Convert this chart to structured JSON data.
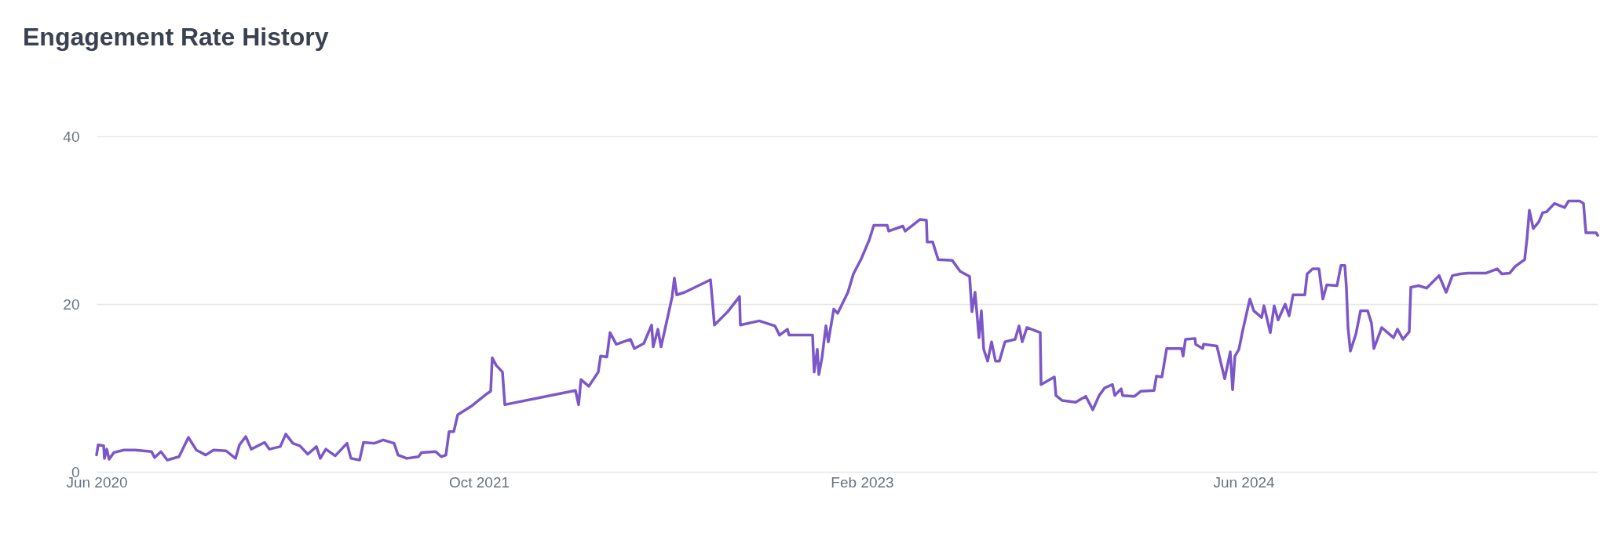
{
  "chart_data": {
    "type": "line",
    "title": "Engagement Rate History",
    "x": [
      "2020-06-01",
      "2020-06-03",
      "2020-06-10",
      "2020-06-11",
      "2020-06-14",
      "2020-06-17",
      "2020-06-23",
      "2020-07-06",
      "2020-07-20",
      "2020-08-10",
      "2020-08-14",
      "2020-08-22",
      "2020-08-30",
      "2020-09-14",
      "2020-09-26",
      "2020-10-06",
      "2020-10-18",
      "2020-10-28",
      "2020-11-13",
      "2020-11-25",
      "2020-11-30",
      "2020-12-08",
      "2020-12-15",
      "2021-01-01",
      "2021-01-07",
      "2021-01-21",
      "2021-01-28",
      "2021-02-06",
      "2021-02-15",
      "2021-02-25",
      "2021-03-08",
      "2021-03-13",
      "2021-03-20",
      "2021-04-01",
      "2021-04-16",
      "2021-04-21",
      "2021-05-02",
      "2021-05-07",
      "2021-05-21",
      "2021-06-01",
      "2021-06-15",
      "2021-06-20",
      "2021-07-01",
      "2021-07-16",
      "2021-07-20",
      "2021-08-07",
      "2021-08-14",
      "2021-08-20",
      "2021-08-24",
      "2021-08-30",
      "2021-09-04",
      "2021-09-21",
      "2021-10-11",
      "2021-10-16",
      "2021-10-18",
      "2021-10-23",
      "2021-10-31",
      "2021-11-03",
      "2022-02-01",
      "2022-02-05",
      "2022-02-08",
      "2022-02-18",
      "2022-03-02",
      "2022-03-05",
      "2022-03-13",
      "2022-03-17",
      "2022-03-25",
      "2022-04-12",
      "2022-04-17",
      "2022-04-29",
      "2022-05-09",
      "2022-05-11",
      "2022-05-17",
      "2022-05-21",
      "2022-05-31",
      "2022-06-04",
      "2022-06-07",
      "2022-06-10",
      "2022-06-20",
      "2022-07-23",
      "2022-07-25",
      "2022-07-28",
      "2022-08-14",
      "2022-08-29",
      "2022-08-30",
      "2022-09-23",
      "2022-10-13",
      "2022-10-19",
      "2022-10-29",
      "2022-10-31",
      "2022-11-30",
      "2022-12-02",
      "2022-12-06",
      "2022-12-08",
      "2022-12-12",
      "2022-12-17",
      "2022-12-20",
      "2022-12-27",
      "2023-01-01",
      "2023-01-14",
      "2023-01-21",
      "2023-01-31",
      "2023-02-10",
      "2023-02-16",
      "2023-03-05",
      "2023-03-07",
      "2023-03-25",
      "2023-03-28",
      "2023-04-16",
      "2023-04-24",
      "2023-04-25",
      "2023-05-02",
      "2023-05-09",
      "2023-05-27",
      "2023-06-06",
      "2023-06-18",
      "2023-06-21",
      "2023-06-25",
      "2023-06-30",
      "2023-07-03",
      "2023-07-06",
      "2023-07-11",
      "2023-07-16",
      "2023-07-21",
      "2023-07-26",
      "2023-08-02",
      "2023-08-15",
      "2023-08-20",
      "2023-08-24",
      "2023-08-30",
      "2023-09-16",
      "2023-09-17",
      "2023-10-04",
      "2023-10-06",
      "2023-10-14",
      "2023-10-31",
      "2023-11-13",
      "2023-11-22",
      "2023-11-30",
      "2023-12-07",
      "2023-12-17",
      "2023-12-20",
      "2023-12-28",
      "2023-12-30",
      "2024-01-14",
      "2024-01-22",
      "2024-02-08",
      "2024-02-11",
      "2024-02-18",
      "2024-02-24",
      "2024-03-14",
      "2024-03-16",
      "2024-03-19",
      "2024-03-31",
      "2024-04-01",
      "2024-04-10",
      "2024-04-11",
      "2024-04-28",
      "2024-05-03",
      "2024-05-08",
      "2024-05-15",
      "2024-05-18",
      "2024-05-21",
      "2024-05-26",
      "2024-05-31",
      "2024-06-09",
      "2024-06-14",
      "2024-06-24",
      "2024-06-27",
      "2024-07-05",
      "2024-07-10",
      "2024-07-15",
      "2024-07-24",
      "2024-07-29",
      "2024-08-03",
      "2024-08-18",
      "2024-08-21",
      "2024-08-28",
      "2024-09-05",
      "2024-09-10",
      "2024-09-15",
      "2024-09-28",
      "2024-10-03",
      "2024-10-08",
      "2024-10-10",
      "2024-10-12",
      "2024-10-15",
      "2024-10-22",
      "2024-10-28",
      "2024-11-06",
      "2024-11-11",
      "2024-11-14",
      "2024-11-24",
      "2024-12-09",
      "2024-12-14",
      "2024-12-21",
      "2024-12-29",
      "2024-12-31",
      "2025-01-10",
      "2025-01-20",
      "2025-02-05",
      "2025-02-14",
      "2025-02-22",
      "2025-03-04",
      "2025-03-14",
      "2025-04-06",
      "2025-04-20",
      "2025-04-26",
      "2025-05-06",
      "2025-05-13",
      "2025-05-25",
      "2025-05-28",
      "2025-05-31",
      "2025-06-05",
      "2025-06-12",
      "2025-06-17",
      "2025-06-22",
      "2025-07-02",
      "2025-07-15",
      "2025-07-20",
      "2025-08-03",
      "2025-08-08",
      "2025-08-11",
      "2025-08-24",
      "2025-08-26"
    ],
    "series": [
      {
        "color": "#7b57c8",
        "values": [
          2.0,
          3.2,
          3.1,
          1.6,
          2.7,
          1.5,
          2.3,
          2.6,
          2.6,
          2.4,
          1.7,
          2.4,
          1.4,
          1.8,
          4.1,
          2.6,
          2.0,
          2.6,
          2.5,
          1.6,
          3.2,
          4.2,
          2.7,
          3.5,
          2.7,
          3.0,
          4.5,
          3.4,
          3.1,
          2.1,
          3.0,
          1.6,
          2.7,
          1.9,
          3.4,
          1.6,
          1.4,
          3.5,
          3.4,
          3.8,
          3.4,
          2.0,
          1.6,
          1.8,
          2.3,
          2.4,
          1.8,
          2.0,
          4.8,
          4.8,
          6.8,
          7.8,
          9.3,
          9.6,
          13.6,
          12.7,
          11.9,
          8.0,
          9.7,
          8.0,
          11.0,
          10.2,
          11.9,
          13.8,
          13.7,
          16.6,
          15.2,
          15.8,
          14.7,
          15.3,
          17.5,
          14.9,
          17.0,
          14.9,
          19.1,
          20.8,
          23.1,
          21.1,
          21.4,
          22.9,
          20.8,
          17.5,
          19.1,
          20.9,
          17.5,
          18.0,
          17.4,
          16.3,
          17.0,
          16.3,
          16.3,
          11.9,
          14.6,
          11.6,
          13.6,
          17.4,
          15.5,
          19.4,
          18.9,
          21.4,
          23.6,
          25.4,
          27.6,
          29.4,
          29.4,
          28.7,
          29.3,
          28.7,
          30.1,
          30.0,
          27.4,
          27.4,
          25.3,
          25.2,
          23.9,
          23.3,
          19.1,
          21.4,
          16.0,
          19.2,
          14.6,
          13.2,
          15.5,
          13.2,
          13.2,
          15.5,
          15.8,
          17.4,
          15.5,
          17.2,
          16.6,
          10.4,
          11.3,
          9.1,
          8.5,
          8.3,
          9.0,
          7.4,
          9.1,
          10.0,
          10.4,
          9.1,
          9.9,
          9.1,
          9.0,
          9.6,
          9.7,
          11.4,
          11.3,
          14.7,
          14.7,
          13.8,
          15.8,
          15.9,
          15.2,
          14.7,
          15.2,
          15.0,
          13.0,
          11.1,
          14.3,
          9.8,
          13.8,
          14.6,
          16.9,
          20.6,
          19.2,
          18.4,
          19.8,
          16.6,
          19.8,
          18.1,
          20.0,
          18.6,
          21.1,
          21.1,
          23.6,
          24.2,
          24.2,
          20.6,
          22.3,
          22.2,
          24.6,
          24.6,
          21.9,
          17.2,
          14.4,
          16.4,
          19.2,
          19.2,
          17.7,
          14.7,
          17.2,
          16.0,
          17.0,
          15.8,
          16.7,
          22.0,
          22.2,
          21.9,
          23.4,
          21.4,
          23.4,
          23.6,
          23.7,
          23.7,
          24.2,
          23.6,
          23.7,
          24.5,
          25.3,
          27.8,
          31.2,
          29.0,
          29.8,
          30.9,
          31.0,
          32.0,
          31.5,
          32.3,
          32.3,
          32.0,
          28.5,
          28.5,
          28.2
        ]
      }
    ],
    "xlim": [
      "2020-06-01",
      "2025-08-26"
    ],
    "xticks": [
      {
        "value": "2020-06-01",
        "label": "Jun 2020"
      },
      {
        "value": "2021-10-01",
        "label": "Oct 2021"
      },
      {
        "value": "2023-02-01",
        "label": "Feb 2023"
      },
      {
        "value": "2024-06-01",
        "label": "Jun 2024"
      }
    ],
    "ylim": [
      0,
      40
    ],
    "yticks": [
      0,
      20,
      40
    ],
    "grid": "y",
    "marker": "none",
    "line_style": "solid"
  }
}
